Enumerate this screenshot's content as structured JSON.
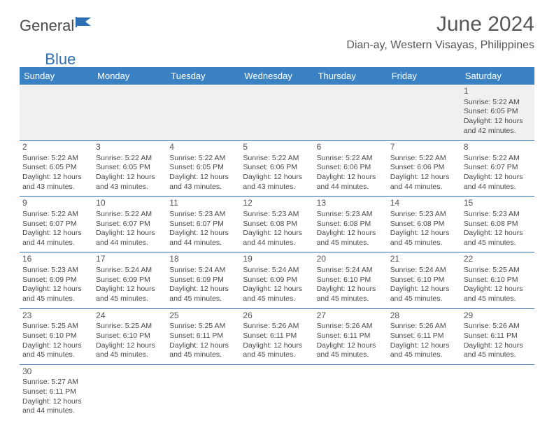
{
  "logo": {
    "part1": "General",
    "part2": "Blue"
  },
  "title": "June 2024",
  "location": "Dian-ay, Western Visayas, Philippines",
  "colors": {
    "header_bg": "#3b82c4",
    "header_fg": "#ffffff",
    "rule": "#2c6fb5",
    "text": "#4a4a4a",
    "logo_gray": "#4a4a4a",
    "logo_blue": "#2c6fb5"
  },
  "day_headers": [
    "Sunday",
    "Monday",
    "Tuesday",
    "Wednesday",
    "Thursday",
    "Friday",
    "Saturday"
  ],
  "weeks": [
    [
      null,
      null,
      null,
      null,
      null,
      null,
      {
        "n": "1",
        "sr": "5:22 AM",
        "ss": "6:05 PM",
        "dl": "12 hours and 42 minutes."
      }
    ],
    [
      {
        "n": "2",
        "sr": "5:22 AM",
        "ss": "6:05 PM",
        "dl": "12 hours and 43 minutes."
      },
      {
        "n": "3",
        "sr": "5:22 AM",
        "ss": "6:05 PM",
        "dl": "12 hours and 43 minutes."
      },
      {
        "n": "4",
        "sr": "5:22 AM",
        "ss": "6:05 PM",
        "dl": "12 hours and 43 minutes."
      },
      {
        "n": "5",
        "sr": "5:22 AM",
        "ss": "6:06 PM",
        "dl": "12 hours and 43 minutes."
      },
      {
        "n": "6",
        "sr": "5:22 AM",
        "ss": "6:06 PM",
        "dl": "12 hours and 44 minutes."
      },
      {
        "n": "7",
        "sr": "5:22 AM",
        "ss": "6:06 PM",
        "dl": "12 hours and 44 minutes."
      },
      {
        "n": "8",
        "sr": "5:22 AM",
        "ss": "6:07 PM",
        "dl": "12 hours and 44 minutes."
      }
    ],
    [
      {
        "n": "9",
        "sr": "5:22 AM",
        "ss": "6:07 PM",
        "dl": "12 hours and 44 minutes."
      },
      {
        "n": "10",
        "sr": "5:22 AM",
        "ss": "6:07 PM",
        "dl": "12 hours and 44 minutes."
      },
      {
        "n": "11",
        "sr": "5:23 AM",
        "ss": "6:07 PM",
        "dl": "12 hours and 44 minutes."
      },
      {
        "n": "12",
        "sr": "5:23 AM",
        "ss": "6:08 PM",
        "dl": "12 hours and 44 minutes."
      },
      {
        "n": "13",
        "sr": "5:23 AM",
        "ss": "6:08 PM",
        "dl": "12 hours and 45 minutes."
      },
      {
        "n": "14",
        "sr": "5:23 AM",
        "ss": "6:08 PM",
        "dl": "12 hours and 45 minutes."
      },
      {
        "n": "15",
        "sr": "5:23 AM",
        "ss": "6:08 PM",
        "dl": "12 hours and 45 minutes."
      }
    ],
    [
      {
        "n": "16",
        "sr": "5:23 AM",
        "ss": "6:09 PM",
        "dl": "12 hours and 45 minutes."
      },
      {
        "n": "17",
        "sr": "5:24 AM",
        "ss": "6:09 PM",
        "dl": "12 hours and 45 minutes."
      },
      {
        "n": "18",
        "sr": "5:24 AM",
        "ss": "6:09 PM",
        "dl": "12 hours and 45 minutes."
      },
      {
        "n": "19",
        "sr": "5:24 AM",
        "ss": "6:09 PM",
        "dl": "12 hours and 45 minutes."
      },
      {
        "n": "20",
        "sr": "5:24 AM",
        "ss": "6:10 PM",
        "dl": "12 hours and 45 minutes."
      },
      {
        "n": "21",
        "sr": "5:24 AM",
        "ss": "6:10 PM",
        "dl": "12 hours and 45 minutes."
      },
      {
        "n": "22",
        "sr": "5:25 AM",
        "ss": "6:10 PM",
        "dl": "12 hours and 45 minutes."
      }
    ],
    [
      {
        "n": "23",
        "sr": "5:25 AM",
        "ss": "6:10 PM",
        "dl": "12 hours and 45 minutes."
      },
      {
        "n": "24",
        "sr": "5:25 AM",
        "ss": "6:10 PM",
        "dl": "12 hours and 45 minutes."
      },
      {
        "n": "25",
        "sr": "5:25 AM",
        "ss": "6:11 PM",
        "dl": "12 hours and 45 minutes."
      },
      {
        "n": "26",
        "sr": "5:26 AM",
        "ss": "6:11 PM",
        "dl": "12 hours and 45 minutes."
      },
      {
        "n": "27",
        "sr": "5:26 AM",
        "ss": "6:11 PM",
        "dl": "12 hours and 45 minutes."
      },
      {
        "n": "28",
        "sr": "5:26 AM",
        "ss": "6:11 PM",
        "dl": "12 hours and 45 minutes."
      },
      {
        "n": "29",
        "sr": "5:26 AM",
        "ss": "6:11 PM",
        "dl": "12 hours and 45 minutes."
      }
    ],
    [
      {
        "n": "30",
        "sr": "5:27 AM",
        "ss": "6:11 PM",
        "dl": "12 hours and 44 minutes."
      },
      null,
      null,
      null,
      null,
      null,
      null
    ]
  ],
  "labels": {
    "sunrise": "Sunrise: ",
    "sunset": "Sunset: ",
    "daylight": "Daylight: "
  }
}
